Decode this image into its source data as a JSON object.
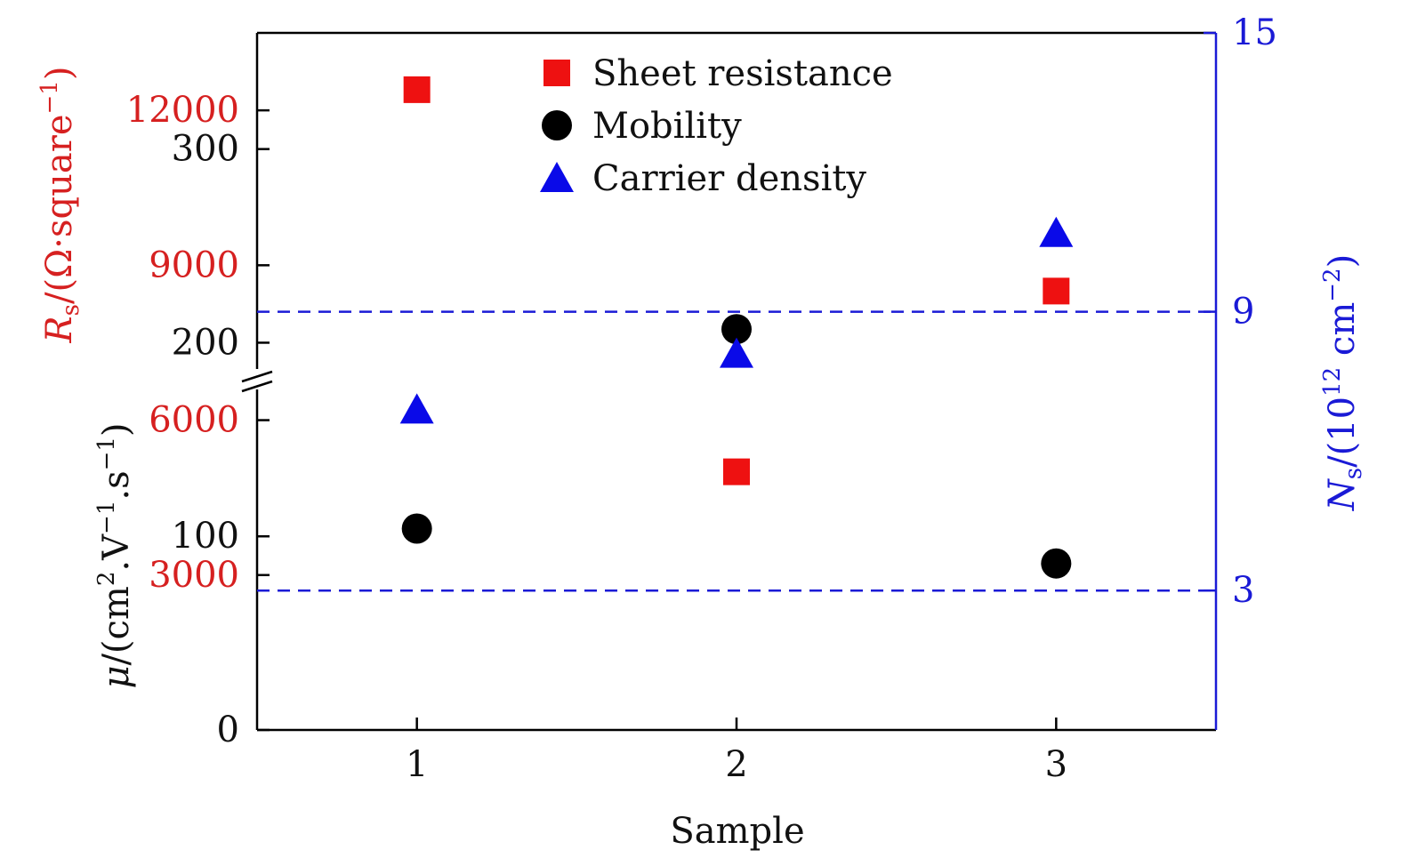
{
  "chart_data": {
    "type": "scatter",
    "xlabel": "Sample",
    "x_ticks": [
      "1",
      "2",
      "3"
    ],
    "x_range": [
      0.5,
      3.5
    ],
    "axes": {
      "left_top": {
        "label_symbol": "R",
        "label_subscript": "s",
        "label_unit_prefix": "/(Ω·square",
        "label_unit_sup": "−1",
        "label_unit_suffix": ")",
        "range": [
          0,
          13500
        ],
        "ticks": [
          "3000",
          "6000",
          "9000",
          "12000"
        ],
        "color": "#d62020"
      },
      "left_bottom": {
        "label_symbol": "μ",
        "label_unit_prefix": "/(cm",
        "label_sup_1": "2",
        "label_mid_1": ".V",
        "label_sup_2": "−1",
        "label_mid_2": ".s",
        "label_sup_3": "−1",
        "label_unit_suffix": ")",
        "range": [
          0,
          360
        ],
        "ticks": [
          "0",
          "100",
          "200",
          "300"
        ],
        "color": "#111111"
      },
      "right": {
        "label_symbol": "N",
        "label_subscript": "s",
        "label_unit_prefix": "/(10",
        "label_sup_1": "12",
        "label_mid_1": " cm",
        "label_sup_2": "−2",
        "label_unit_suffix": ")",
        "range": [
          0,
          15
        ],
        "ticks": [
          "3",
          "9",
          "15"
        ],
        "color": "#1a1ad6"
      }
    },
    "series": [
      {
        "name": "Sheet resistance",
        "marker": "square",
        "color": "#ee1111",
        "axis": "left_top",
        "x": [
          1,
          2,
          3
        ],
        "y": [
          12400,
          5000,
          8500
        ]
      },
      {
        "name": "Mobility",
        "marker": "circle",
        "color": "#000000",
        "axis": "left_bottom",
        "x": [
          1,
          2,
          3
        ],
        "y": [
          104,
          207,
          86
        ]
      },
      {
        "name": "Carrier density",
        "marker": "triangle",
        "color": "#0a0ae8",
        "axis": "right",
        "x": [
          1,
          2,
          3
        ],
        "y": [
          6.9,
          8.1,
          10.7
        ]
      }
    ],
    "reference_lines": [
      {
        "axis": "right",
        "y": 9,
        "style": "dashed",
        "color": "#1a1ad6"
      },
      {
        "axis": "right",
        "y": 3,
        "style": "dashed",
        "color": "#1a1ad6"
      }
    ],
    "legend_placement": "top-center",
    "grid": false,
    "axis_break": "left axis"
  }
}
